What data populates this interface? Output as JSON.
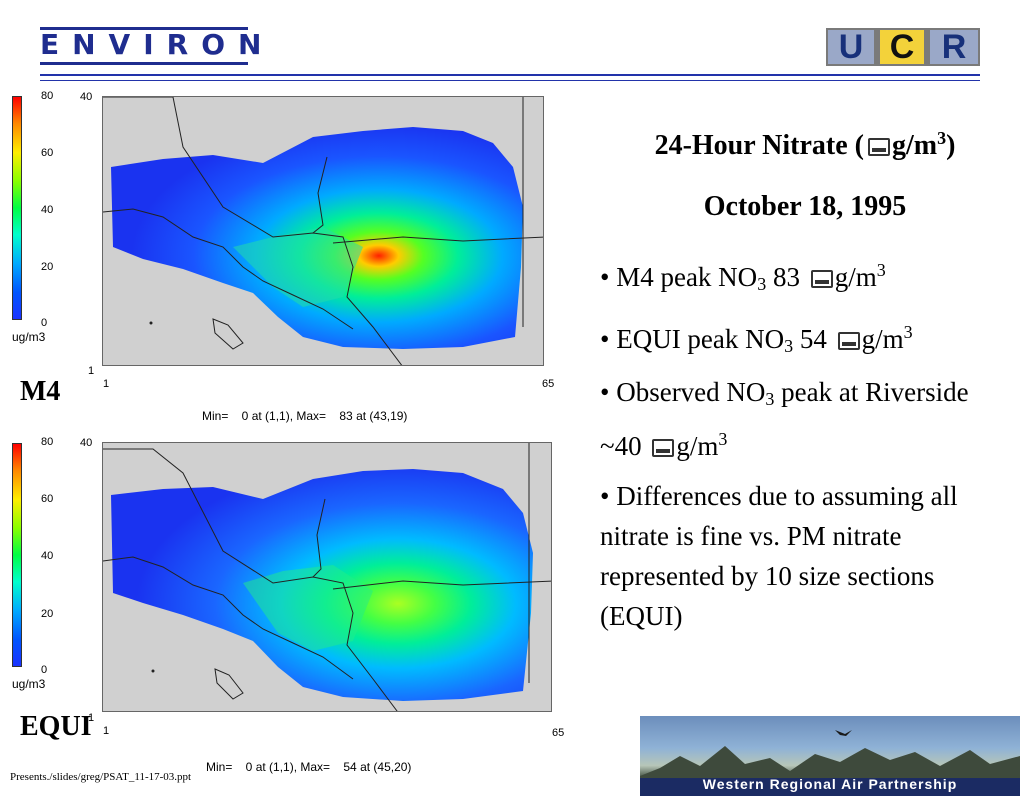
{
  "header": {
    "environ_logo": "ENVIRON",
    "ucr_logo": [
      "U",
      "C",
      "R"
    ]
  },
  "colors": {
    "environ_blue": "#1f2d8f",
    "background": "#ffffff"
  },
  "maps": [
    {
      "panel_label": "M4",
      "legend_ticks": [
        "80",
        "60",
        "40",
        "20",
        "0"
      ],
      "legend_unit": "ug/m3",
      "y_top": "40",
      "y_bottom": "1",
      "x_left": "1",
      "x_right": "65",
      "minmax": "Min=    0 at (1,1), Max=    83 at (43,19)"
    },
    {
      "panel_label": "EQUI",
      "legend_ticks": [
        "80",
        "60",
        "40",
        "20",
        "0"
      ],
      "legend_unit": "ug/m3",
      "y_top": "40",
      "y_bottom": "1",
      "x_left": "1",
      "x_right": "65",
      "minmax": "Min=    0 at (1,1), Max=    54 at (45,20)"
    }
  ],
  "content": {
    "title_prefix": "24-Hour Nitrate (",
    "title_unit": "g/m",
    "title_sup": "3",
    "title_suffix": ")",
    "date": "October 18, 1995",
    "bullet1": {
      "lead": "•  M4 peak NO",
      "sub": "3",
      "value": " 83 ",
      "unit": "g/m",
      "sup": "3"
    },
    "bullet2": {
      "lead": "•  EQUI peak NO",
      "sub": "3",
      "value": " 54 ",
      "unit": "g/m",
      "sup": "3"
    },
    "bullet3": {
      "lead": "• Observed NO",
      "sub": "3",
      "mid": " peak at Riverside ~40 ",
      "unit": "g/m",
      "sup": "3"
    },
    "bullet4": "•  Differences due to assuming all nitrate is fine vs. PM nitrate represented by 10 size sections (EQUI)"
  },
  "footer": {
    "path": "Presents./slides/greg/PSAT_11-17-03.ppt",
    "wrap_logo": "Western Regional Air Partnership"
  }
}
